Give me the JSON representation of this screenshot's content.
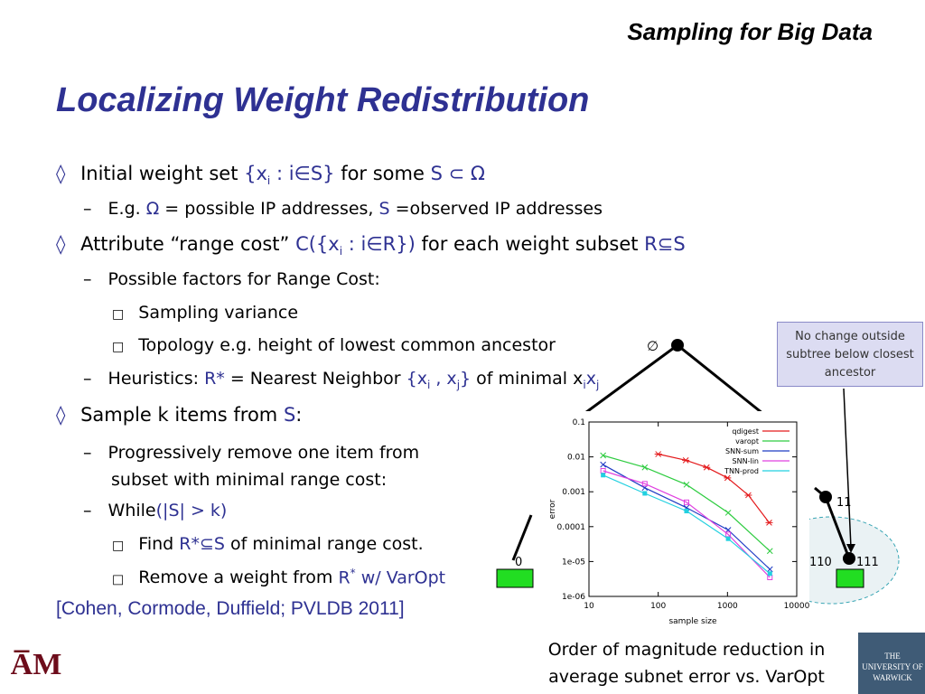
{
  "header": "Sampling for Big Data",
  "title": "Localizing Weight Redistribution",
  "bullets": {
    "b1_pre": "Initial weight set ",
    "b1_set": "{x",
    "b1_sub": "i",
    "b1_set2": " : i∈S}",
    "b1_mid": " for some ",
    "b1_rel": "S ⊂ Ω",
    "b1a_pre": "E.g. ",
    "b1a_omega": "Ω",
    "b1a_mid": " = possible IP addresses, ",
    "b1a_s": "S",
    "b1a_post": " =observed IP addresses",
    "b2_pre": "Attribute “range cost” ",
    "b2_c": "C({x",
    "b2_sub": "i",
    "b2_c2": " : i∈R})",
    "b2_mid": " for each weight subset ",
    "b2_r": "R⊆S",
    "b2a": "Possible factors for Range Cost:",
    "b2a1": "Sampling variance",
    "b2a2": "Topology e.g. height of lowest common ancestor",
    "b2b_pre": "Heuristics: ",
    "b2b_r": "R*",
    "b2b_mid": " = Nearest Neighbor ",
    "b2b_set": "{x",
    "b2b_sub1": "i",
    "b2b_set2": " , x",
    "b2b_sub2": "j",
    "b2b_set3": "}",
    "b2b_post": " of minimal x",
    "b2b_sub3": "i",
    "b2b_x": "x",
    "b2b_sub4": "j",
    "b3_pre": "Sample k items from ",
    "b3_s": "S",
    "b3_post": ":",
    "b3a_1": "Progressively remove one item from",
    "b3a_2": "subset with minimal range cost:",
    "b3b_pre": "While",
    "b3b_cond": "(|S| > k)",
    "b3b1_pre": "Find ",
    "b3b1_r": "R*⊆S",
    "b3b1_post": " of minimal range cost.",
    "b3b2_pre": "Remove a weight from ",
    "b3b2_r": "R",
    "b3b2_sup": "*",
    "b3b2_post": " w/ VarOpt",
    "diamond": "◊",
    "dash": "–",
    "square": "□"
  },
  "citation": "[Cohen, Cormode, Duffield; PVLDB 2011]",
  "callout": "No change outside subtree below closest ancestor",
  "caption": "Order of magnitude reduction in average subnet error vs. VarOpt",
  "tree": {
    "root_label": "∅",
    "label_0": "0",
    "label_11": "11",
    "label_110": "110",
    "label_111": "111"
  },
  "logo_left": "A̅M",
  "logo_right": "THE UNIVERSITY OF WARWICK",
  "chart_data": {
    "type": "line",
    "xlabel": "sample size",
    "ylabel": "error",
    "xscale": "log",
    "yscale": "log",
    "xlim": [
      10,
      10000
    ],
    "ylim": [
      1e-06,
      0.1
    ],
    "xticks": [
      "10",
      "100",
      "1000",
      "10000"
    ],
    "yticks": [
      "0.1",
      "0.01",
      "0.001",
      "0.0001",
      "1e-05",
      "1e-06"
    ],
    "legend_position": "top-right",
    "series": [
      {
        "name": "qdigest",
        "color": "#e41a1c",
        "x": [
          100,
          250,
          500,
          1000,
          2000,
          4000
        ],
        "y": [
          0.012,
          0.008,
          0.005,
          0.0025,
          0.0008,
          0.00013
        ]
      },
      {
        "name": "varopt",
        "color": "#2ecc40",
        "x": [
          16,
          64,
          256,
          1024,
          4096
        ],
        "y": [
          0.011,
          0.005,
          0.0016,
          0.00025,
          2e-05
        ]
      },
      {
        "name": "SNN-sum",
        "color": "#1f3cc4",
        "x": [
          16,
          64,
          256,
          1024,
          4096
        ],
        "y": [
          0.006,
          0.0013,
          0.00035,
          8e-05,
          6e-06
        ]
      },
      {
        "name": "SNN-lin",
        "color": "#e040e0",
        "x": [
          16,
          64,
          256,
          1024,
          4096
        ],
        "y": [
          0.004,
          0.0017,
          0.0005,
          6e-05,
          3.5e-06
        ]
      },
      {
        "name": "TNN-prod",
        "color": "#22d0e0",
        "x": [
          16,
          64,
          256,
          1024,
          4096
        ],
        "y": [
          0.003,
          0.0009,
          0.00028,
          4.5e-05,
          4.5e-06
        ]
      }
    ]
  }
}
